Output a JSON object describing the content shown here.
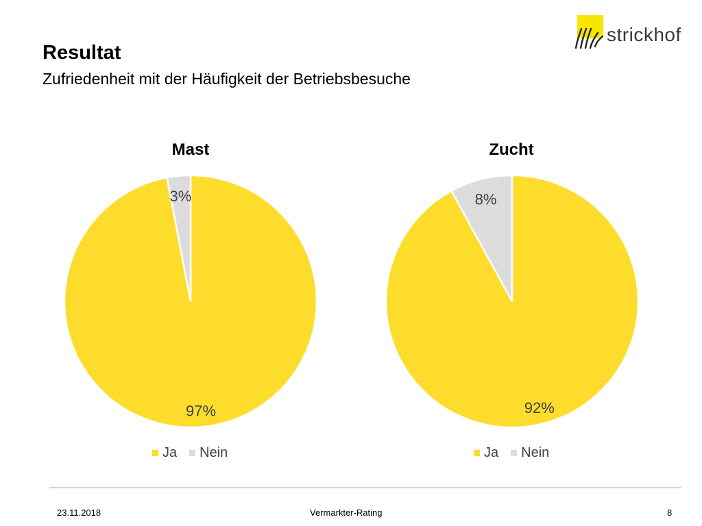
{
  "header": {
    "title": "Resultat",
    "subtitle": "Zufriedenheit mit der Häufigkeit der Betriebsbesuche",
    "logo_text": "strickhof"
  },
  "colors": {
    "ja": "#fddc2c",
    "nein": "#dcdcdc",
    "logo_accent": "#f7e600"
  },
  "chart_data": [
    {
      "type": "pie",
      "title": "Mast",
      "categories": [
        "Ja",
        "Nein"
      ],
      "values": [
        97,
        3
      ],
      "labels": [
        "97%",
        "3%"
      ],
      "colors": [
        "#fddc2c",
        "#dcdcdc"
      ],
      "legend": "bottom"
    },
    {
      "type": "pie",
      "title": "Zucht",
      "categories": [
        "Ja",
        "Nein"
      ],
      "values": [
        92,
        8
      ],
      "labels": [
        "92%",
        "8%"
      ],
      "colors": [
        "#fddc2c",
        "#dcdcdc"
      ],
      "legend": "bottom"
    }
  ],
  "footer": {
    "date": "23.11.2018",
    "center": "Vermarkter-Rating",
    "page": "8"
  }
}
